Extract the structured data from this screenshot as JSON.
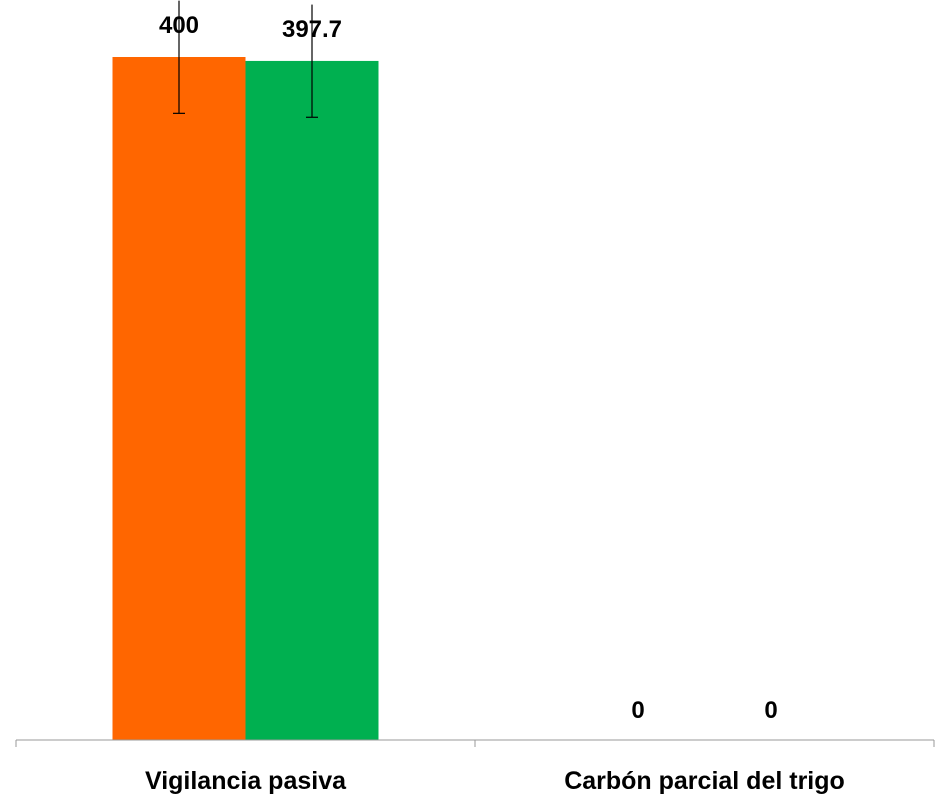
{
  "chart_data": {
    "type": "bar",
    "categories": [
      "Vigilancia pasiva",
      "Carbón parcial del trigo"
    ],
    "series": [
      {
        "color": "#FF6600",
        "values": [
          400,
          0
        ],
        "error": [
          33,
          0
        ],
        "labels": [
          "400",
          "0"
        ]
      },
      {
        "color": "#00B050",
        "values": [
          397.7,
          0
        ],
        "error": [
          33,
          0
        ],
        "labels": [
          "397.7",
          "0"
        ]
      }
    ],
    "ylim": [
      0,
      400
    ],
    "grid": false,
    "legend": "none"
  }
}
